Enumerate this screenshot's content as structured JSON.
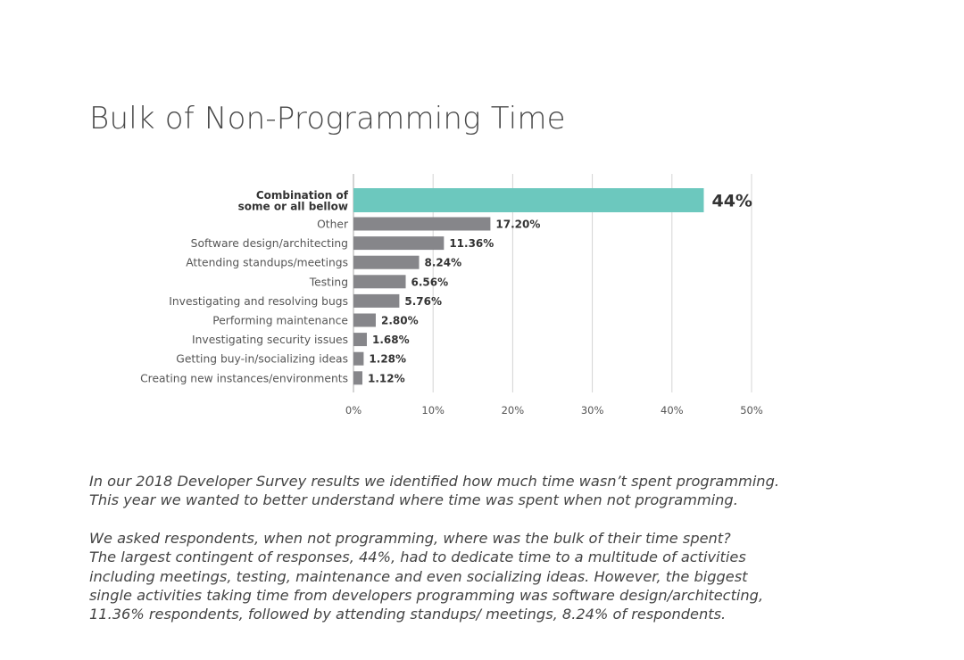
{
  "page": {
    "title": "Bulk of Non-Programming Time",
    "paragraph_1": [
      "In our 2018 Developer Survey results we identified how much time wasn’t spent programming.",
      "This year we wanted to better understand where time was spent when not programming."
    ],
    "paragraph_2": [
      "We asked respondents, when not programming, where was the bulk of their time spent?",
      "The largest contingent of responses, 44%, had to dedicate time to a multitude of activities",
      "including meetings, testing, maintenance and even socializing ideas. However, the biggest",
      "single activities taking time from developers programming was software design/architecting,",
      "11.36% respondents, followed by attending standups/ meetings, 8.24% of respondents."
    ]
  },
  "chart_data": {
    "type": "bar",
    "orientation": "horizontal",
    "title": "Bulk of Non-Programming Time",
    "xlabel": "",
    "ylabel": "",
    "xlim": [
      0,
      50
    ],
    "x_ticks": [
      "0%",
      "10%",
      "20%",
      "30%",
      "40%",
      "50%"
    ],
    "grid": "vertical",
    "colors": {
      "highlight": "#6cc8be",
      "default": "#86868a",
      "grid": "#d4d4d4"
    },
    "categories": [
      {
        "label": [
          "Combination of",
          "some or all bellow"
        ],
        "value": 44,
        "value_label": "44%",
        "highlight": true
      },
      {
        "label": [
          "Other"
        ],
        "value": 17.2,
        "value_label": "17.20%",
        "highlight": false
      },
      {
        "label": [
          "Software design/architecting"
        ],
        "value": 11.36,
        "value_label": "11.36%",
        "highlight": false
      },
      {
        "label": [
          "Attending standups/meetings"
        ],
        "value": 8.24,
        "value_label": "8.24%",
        "highlight": false
      },
      {
        "label": [
          "Testing"
        ],
        "value": 6.56,
        "value_label": "6.56%",
        "highlight": false
      },
      {
        "label": [
          "Investigating and resolving bugs"
        ],
        "value": 5.76,
        "value_label": "5.76%",
        "highlight": false
      },
      {
        "label": [
          "Performing maintenance"
        ],
        "value": 2.8,
        "value_label": "2.80%",
        "highlight": false
      },
      {
        "label": [
          "Investigating security issues"
        ],
        "value": 1.68,
        "value_label": "1.68%",
        "highlight": false
      },
      {
        "label": [
          "Getting buy-in/socializing ideas"
        ],
        "value": 1.28,
        "value_label": "1.28%",
        "highlight": false
      },
      {
        "label": [
          "Creating new instances/environments"
        ],
        "value": 1.12,
        "value_label": "1.12%",
        "highlight": false
      }
    ]
  }
}
